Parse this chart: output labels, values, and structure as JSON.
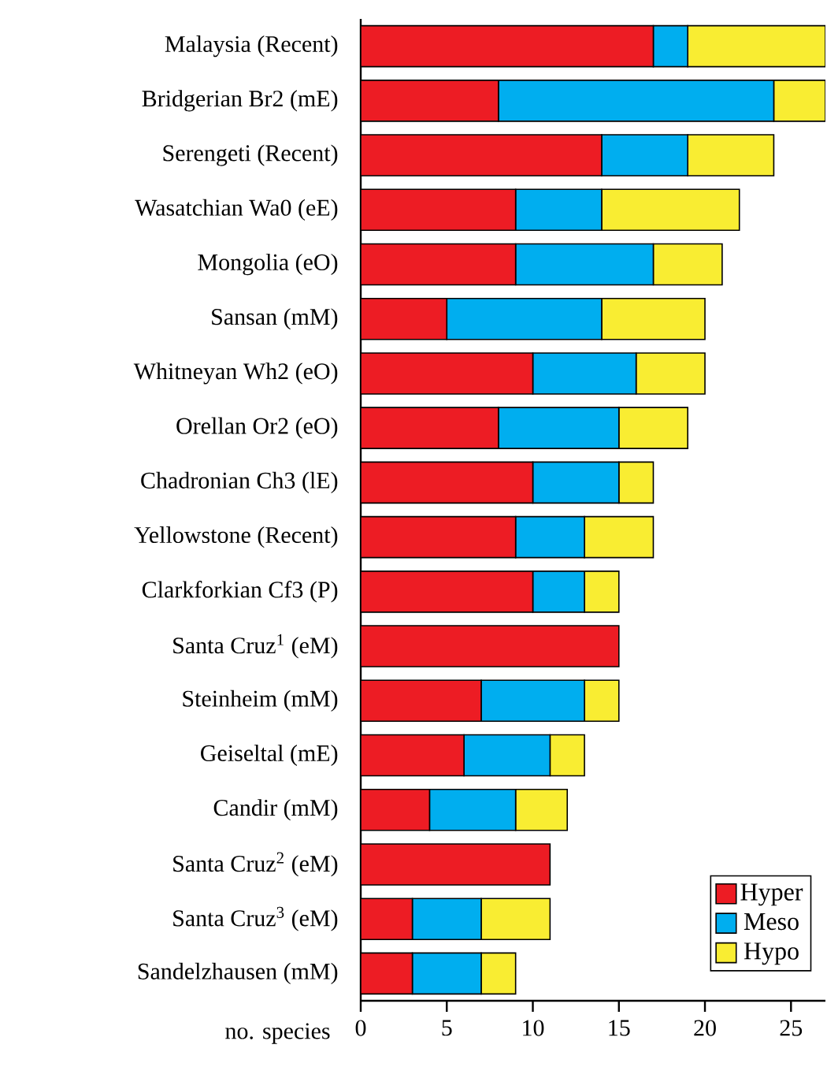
{
  "chart_data": {
    "type": "bar",
    "orientation": "horizontal",
    "stacked": true,
    "categories": [
      "Malaysia (Recent)",
      "Bridgerian Br2 (mE)",
      "Serengeti (Recent)",
      "Wasatchian Wa0 (eE)",
      "Mongolia (eO)",
      "Sansan (mM)",
      "Whitneyan Wh2 (eO)",
      "Orellan Or2 (eO)",
      "Chadronian Ch3 (lE)",
      "Yellowstone (Recent)",
      "Clarkforkian Cf3 (P)",
      "Santa Cruz$^{1}$ (eM)",
      "Steinheim (mM)",
      "Geiseltal (mE)",
      "Candir (mM)",
      "Santa Cruz$^{2}$ (eM)",
      "Santa Cruz$^{3}$ (eM)",
      "Sandelzhausen (mM)"
    ],
    "series": [
      {
        "name": "Hyper",
        "color": "#ed1c24",
        "values": [
          17,
          8,
          14,
          9,
          9,
          5,
          10,
          8,
          10,
          9,
          10,
          15,
          7,
          6,
          4,
          11,
          3,
          3
        ]
      },
      {
        "name": "Meso",
        "color": "#00aeef",
        "values": [
          2,
          16,
          5,
          5,
          8,
          9,
          6,
          7,
          5,
          4,
          3,
          0,
          6,
          5,
          5,
          0,
          4,
          4
        ]
      },
      {
        "name": "Hypo",
        "color": "#f9ed32",
        "values": [
          8,
          3,
          5,
          8,
          4,
          6,
          4,
          4,
          2,
          4,
          2,
          0,
          2,
          2,
          3,
          0,
          4,
          2
        ]
      }
    ],
    "xlabel": "no. species",
    "xlim": [
      0,
      27
    ],
    "xticks": [
      0,
      5,
      10,
      15,
      20,
      25
    ],
    "legend": "bottom right"
  }
}
